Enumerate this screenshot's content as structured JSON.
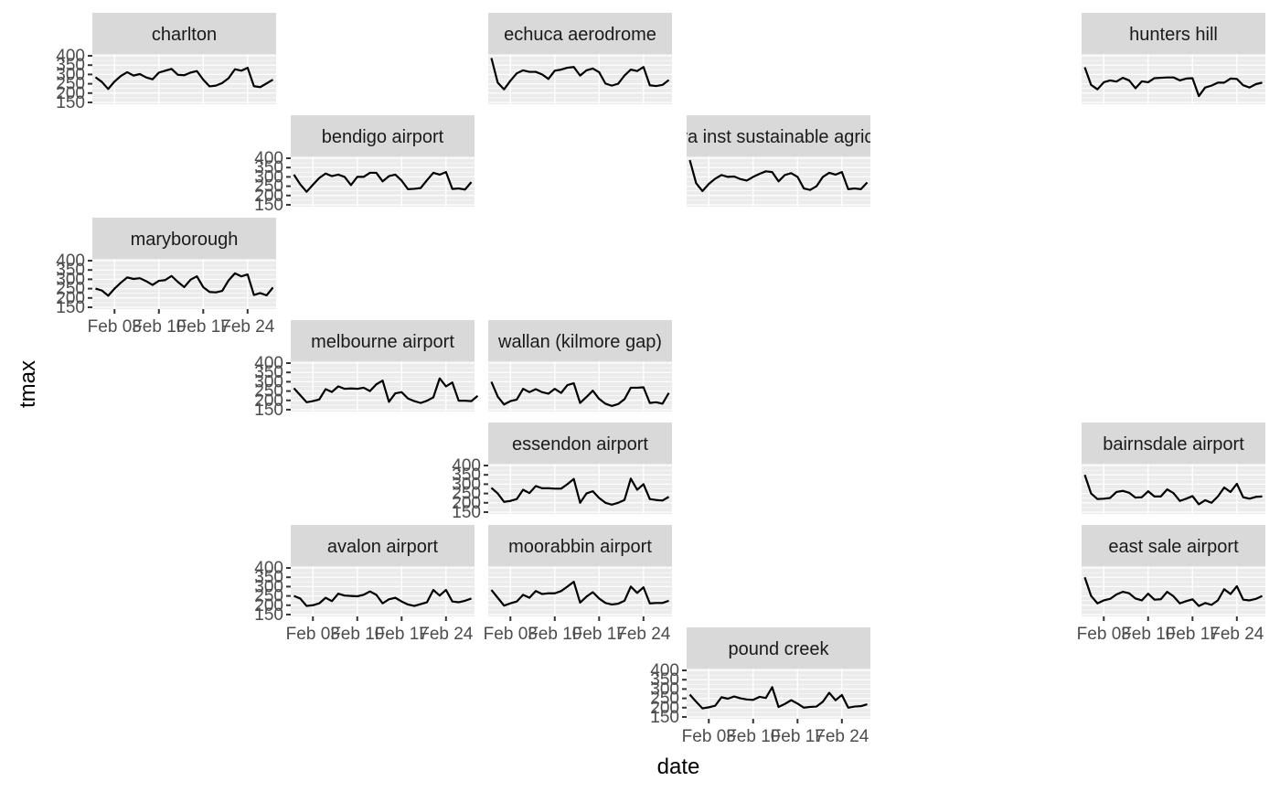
{
  "chart_data": {
    "type": "line",
    "layout": "faceted small multiples positioned on a map-like grid",
    "xlabel": "date",
    "ylabel": "tmax",
    "y_ticks": [
      150,
      200,
      250,
      300,
      350,
      400
    ],
    "ylim": [
      140,
      410
    ],
    "x_ticks": [
      "Feb 03",
      "Feb 10",
      "Feb 17",
      "Feb 24"
    ],
    "x_tick_days": [
      3,
      10,
      17,
      24
    ],
    "xlim": [
      -0.5,
      28.5
    ],
    "grid": true,
    "colors": {
      "panel_bg": "#ebebeb",
      "grid": "#ffffff",
      "strip_bg": "#d9d9d9",
      "line": "#000000",
      "tick": "#333333"
    },
    "panels": [
      {
        "station": "charlton",
        "row": 0,
        "col": 0,
        "show_y_axis": true,
        "show_x_axis": false,
        "tmax": [
          285,
          260,
          222,
          262,
          292,
          312,
          294,
          302,
          284,
          274,
          310,
          320,
          330,
          298,
          296,
          310,
          318,
          272,
          236,
          240,
          254,
          280,
          328,
          320,
          336,
          237,
          232,
          252,
          272
        ]
      },
      {
        "station": "echuca aerodrome",
        "row": 0,
        "col": 2,
        "show_y_axis": false,
        "show_x_axis": false,
        "tmax": [
          388,
          256,
          220,
          266,
          306,
          322,
          314,
          314,
          300,
          276,
          320,
          326,
          336,
          340,
          294,
          322,
          332,
          312,
          251,
          240,
          250,
          294,
          326,
          318,
          340,
          242,
          238,
          244,
          270
        ]
      },
      {
        "station": "hunters hill",
        "row": 0,
        "col": 5,
        "show_y_axis": false,
        "show_x_axis": false,
        "tmax": [
          338,
          244,
          220,
          258,
          268,
          262,
          282,
          268,
          226,
          263,
          258,
          280,
          282,
          284,
          284,
          268,
          278,
          280,
          184,
          230,
          240,
          256,
          256,
          278,
          276,
          242,
          230,
          248,
          256
        ]
      },
      {
        "station": "bendigo airport",
        "row": 1,
        "col": 1,
        "show_y_axis": true,
        "show_x_axis": false,
        "tmax": [
          312,
          260,
          220,
          258,
          294,
          318,
          304,
          312,
          300,
          256,
          300,
          300,
          322,
          322,
          276,
          304,
          312,
          280,
          234,
          236,
          240,
          282,
          322,
          312,
          326,
          235,
          238,
          232,
          272
        ]
      },
      {
        "station": "mildura inst sustainable agriculture",
        "row": 1,
        "col": 3,
        "show_y_axis": false,
        "show_x_axis": false,
        "tmax": [
          390,
          266,
          224,
          262,
          290,
          310,
          300,
          302,
          288,
          280,
          300,
          316,
          330,
          326,
          276,
          310,
          320,
          300,
          238,
          230,
          250,
          300,
          322,
          312,
          326,
          234,
          238,
          234,
          270
        ]
      },
      {
        "station": "maryborough",
        "row": 2,
        "col": 0,
        "show_y_axis": true,
        "show_x_axis": true,
        "tmax": [
          250,
          240,
          212,
          250,
          282,
          310,
          302,
          306,
          290,
          270,
          292,
          296,
          318,
          286,
          258,
          298,
          316,
          258,
          232,
          230,
          238,
          294,
          332,
          316,
          326,
          216,
          226,
          214,
          256
        ]
      },
      {
        "station": "melbourne airport",
        "row": 3,
        "col": 1,
        "show_y_axis": true,
        "show_x_axis": false,
        "tmax": [
          265,
          228,
          190,
          196,
          205,
          260,
          245,
          275,
          262,
          264,
          262,
          268,
          250,
          286,
          306,
          192,
          238,
          244,
          210,
          196,
          186,
          198,
          216,
          318,
          275,
          296,
          198,
          198,
          196,
          224
        ]
      },
      {
        "station": "wallan (kilmore gap)",
        "row": 3,
        "col": 2,
        "show_y_axis": false,
        "show_x_axis": false,
        "tmax": [
          300,
          220,
          178,
          196,
          204,
          262,
          244,
          260,
          244,
          236,
          262,
          240,
          282,
          292,
          186,
          218,
          252,
          208,
          182,
          170,
          180,
          206,
          268,
          268,
          270,
          186,
          190,
          182,
          240
        ]
      },
      {
        "station": "essendon airport",
        "row": 4,
        "col": 2,
        "show_y_axis": true,
        "show_x_axis": false,
        "tmax": [
          280,
          250,
          205,
          210,
          220,
          270,
          252,
          290,
          278,
          278,
          276,
          276,
          300,
          328,
          200,
          250,
          262,
          226,
          200,
          190,
          200,
          215,
          330,
          270,
          300,
          220,
          215,
          212,
          232
        ]
      },
      {
        "station": "bairnsdale airport",
        "row": 4,
        "col": 5,
        "show_y_axis": false,
        "show_x_axis": false,
        "tmax": [
          350,
          250,
          220,
          222,
          226,
          258,
          264,
          254,
          228,
          230,
          262,
          234,
          234,
          272,
          252,
          210,
          222,
          236,
          192,
          214,
          200,
          234,
          282,
          258,
          302,
          230,
          222,
          232,
          234
        ]
      },
      {
        "station": "avalon airport",
        "row": 5,
        "col": 1,
        "show_y_axis": true,
        "show_x_axis": true,
        "tmax": [
          250,
          236,
          196,
          200,
          210,
          240,
          222,
          262,
          252,
          250,
          248,
          256,
          274,
          256,
          210,
          232,
          240,
          220,
          204,
          196,
          206,
          216,
          282,
          252,
          282,
          220,
          216,
          224,
          236
        ]
      },
      {
        "station": "moorabbin airport",
        "row": 5,
        "col": 2,
        "show_y_axis": false,
        "show_x_axis": true,
        "tmax": [
          282,
          240,
          198,
          210,
          220,
          256,
          240,
          276,
          260,
          264,
          264,
          276,
          300,
          326,
          214,
          246,
          270,
          236,
          212,
          204,
          208,
          224,
          300,
          266,
          296,
          210,
          212,
          212,
          224
        ]
      },
      {
        "station": "east sale airport",
        "row": 5,
        "col": 5,
        "show_y_axis": false,
        "show_x_axis": true,
        "tmax": [
          350,
          250,
          210,
          226,
          234,
          258,
          272,
          264,
          236,
          226,
          262,
          230,
          232,
          272,
          248,
          210,
          222,
          232,
          196,
          212,
          202,
          226,
          286,
          260,
          302,
          230,
          226,
          234,
          250
        ]
      },
      {
        "station": "pound creek",
        "row": 6,
        "col": 3,
        "show_y_axis": true,
        "show_x_axis": true,
        "tmax": [
          270,
          232,
          196,
          202,
          210,
          256,
          248,
          260,
          250,
          244,
          242,
          258,
          252,
          310,
          204,
          220,
          240,
          222,
          200,
          204,
          206,
          232,
          280,
          240,
          268,
          200,
          206,
          208,
          218
        ]
      }
    ]
  }
}
